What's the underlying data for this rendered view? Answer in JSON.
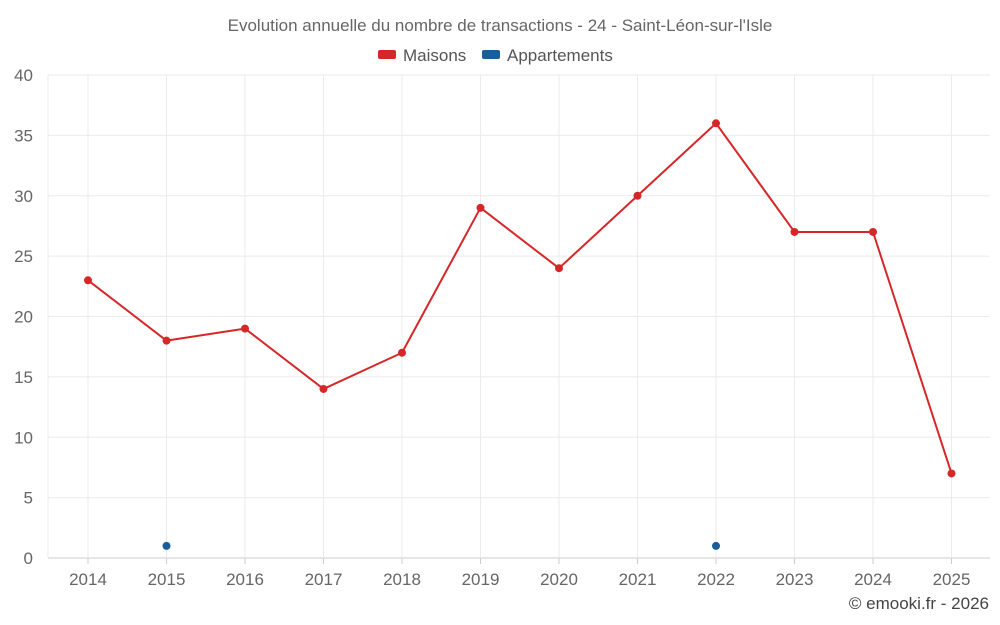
{
  "chart_data": {
    "type": "line",
    "title": "Evolution annuelle du nombre de transactions - 24 - Saint-Léon-sur-l'Isle",
    "categories": [
      "2014",
      "2015",
      "2016",
      "2017",
      "2018",
      "2019",
      "2020",
      "2021",
      "2022",
      "2023",
      "2024",
      "2025"
    ],
    "ylim": [
      0,
      40
    ],
    "yticks": [
      0,
      5,
      10,
      15,
      20,
      25,
      30,
      35,
      40
    ],
    "grid": true,
    "legend_position": "top-center",
    "series": [
      {
        "name": "Maisons",
        "color": "#d62728",
        "values": [
          23,
          18,
          19,
          14,
          17,
          29,
          24,
          30,
          36,
          27,
          27,
          7
        ]
      },
      {
        "name": "Appartements",
        "color": "#1a5e9a",
        "values": [
          null,
          1,
          null,
          null,
          null,
          null,
          null,
          null,
          1,
          null,
          null,
          null
        ]
      }
    ]
  },
  "credit": "© emooki.fr - 2026"
}
